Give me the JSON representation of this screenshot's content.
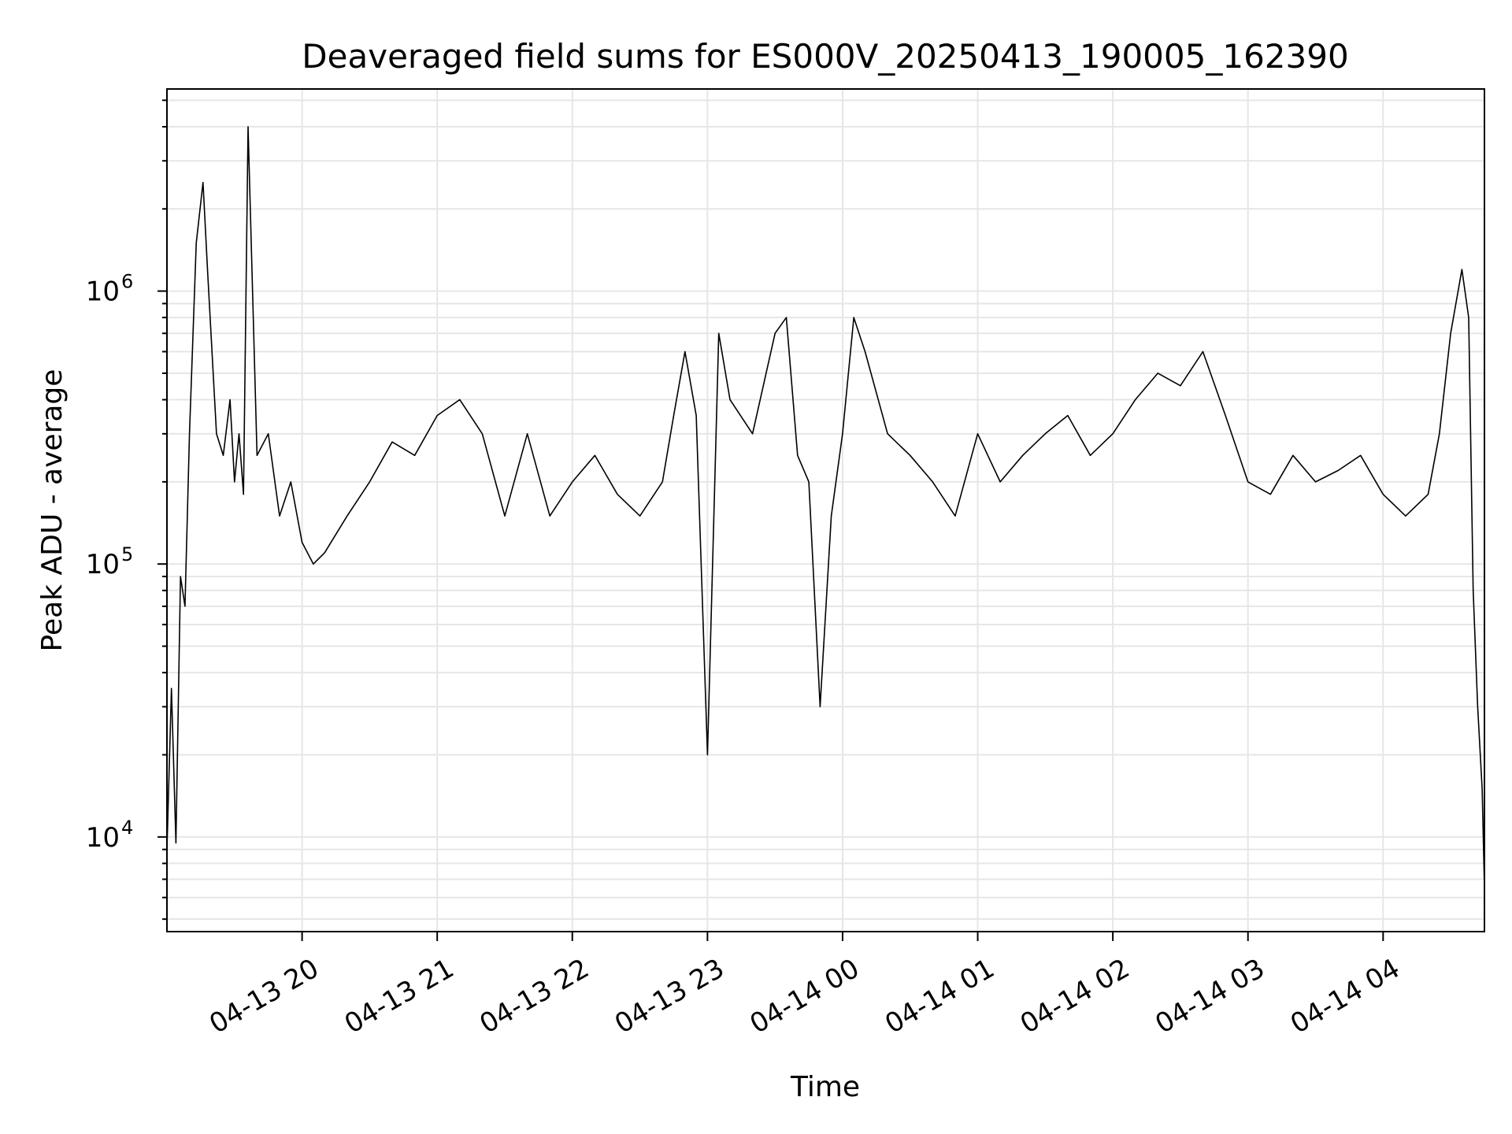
{
  "chart_data": {
    "type": "line",
    "title": "Deaveraged field sums for ES000V_20250413_190005_162390",
    "xlabel": "Time",
    "ylabel": "Peak ADU - average",
    "yscale": "log",
    "ylim": [
      4500,
      5500000
    ],
    "xlim": [
      "2025-04-13 19:00",
      "2025-04-14 04:45"
    ],
    "grid": true,
    "x_ticks": [
      "04-13 20",
      "04-13 21",
      "04-13 22",
      "04-13 23",
      "04-14 00",
      "04-14 01",
      "04-14 02",
      "04-14 03",
      "04-14 04"
    ],
    "y_ticks": [
      {
        "base": "10",
        "exp": "4",
        "value": 10000
      },
      {
        "base": "10",
        "exp": "5",
        "value": 100000
      },
      {
        "base": "10",
        "exp": "6",
        "value": 1000000
      }
    ],
    "line_color": "#000000",
    "series": [
      {
        "x": [
          "2025-04-13 19:00",
          "2025-04-13 19:02",
          "2025-04-13 19:04",
          "2025-04-13 19:06",
          "2025-04-13 19:08",
          "2025-04-13 19:10",
          "2025-04-13 19:13",
          "2025-04-13 19:16",
          "2025-04-13 19:18",
          "2025-04-13 19:20",
          "2025-04-13 19:22",
          "2025-04-13 19:25",
          "2025-04-13 19:28",
          "2025-04-13 19:30",
          "2025-04-13 19:32",
          "2025-04-13 19:34",
          "2025-04-13 19:36",
          "2025-04-13 19:40",
          "2025-04-13 19:45",
          "2025-04-13 19:50",
          "2025-04-13 19:55",
          "2025-04-13 20:00",
          "2025-04-13 20:05",
          "2025-04-13 20:10",
          "2025-04-13 20:20",
          "2025-04-13 20:30",
          "2025-04-13 20:40",
          "2025-04-13 20:50",
          "2025-04-13 21:00",
          "2025-04-13 21:10",
          "2025-04-13 21:20",
          "2025-04-13 21:30",
          "2025-04-13 21:40",
          "2025-04-13 21:50",
          "2025-04-13 22:00",
          "2025-04-13 22:10",
          "2025-04-13 22:20",
          "2025-04-13 22:30",
          "2025-04-13 22:40",
          "2025-04-13 22:45",
          "2025-04-13 22:50",
          "2025-04-13 22:55",
          "2025-04-13 23:00",
          "2025-04-13 23:05",
          "2025-04-13 23:10",
          "2025-04-13 23:20",
          "2025-04-13 23:30",
          "2025-04-13 23:35",
          "2025-04-13 23:40",
          "2025-04-13 23:45",
          "2025-04-13 23:50",
          "2025-04-13 23:55",
          "2025-04-14 00:00",
          "2025-04-14 00:05",
          "2025-04-14 00:10",
          "2025-04-14 00:20",
          "2025-04-14 00:30",
          "2025-04-14 00:40",
          "2025-04-14 00:50",
          "2025-04-14 01:00",
          "2025-04-14 01:10",
          "2025-04-14 01:20",
          "2025-04-14 01:30",
          "2025-04-14 01:40",
          "2025-04-14 01:50",
          "2025-04-14 02:00",
          "2025-04-14 02:10",
          "2025-04-14 02:20",
          "2025-04-14 02:30",
          "2025-04-14 02:40",
          "2025-04-14 02:50",
          "2025-04-14 03:00",
          "2025-04-14 03:10",
          "2025-04-14 03:20",
          "2025-04-14 03:30",
          "2025-04-14 03:40",
          "2025-04-14 03:50",
          "2025-04-14 04:00",
          "2025-04-14 04:10",
          "2025-04-14 04:20",
          "2025-04-14 04:25",
          "2025-04-14 04:30",
          "2025-04-14 04:35",
          "2025-04-14 04:38",
          "2025-04-14 04:40",
          "2025-04-14 04:42",
          "2025-04-14 04:44",
          "2025-04-14 04:45"
        ],
        "values": [
          9000,
          35000,
          9500,
          90000,
          70000,
          300000,
          1500000,
          2500000,
          1200000,
          600000,
          300000,
          250000,
          400000,
          200000,
          300000,
          180000,
          4000000,
          250000,
          300000,
          150000,
          200000,
          120000,
          100000,
          110000,
          150000,
          200000,
          280000,
          250000,
          350000,
          400000,
          300000,
          150000,
          300000,
          150000,
          200000,
          250000,
          180000,
          150000,
          200000,
          350000,
          600000,
          350000,
          20000,
          700000,
          400000,
          300000,
          700000,
          800000,
          250000,
          200000,
          30000,
          150000,
          300000,
          800000,
          600000,
          300000,
          250000,
          200000,
          150000,
          300000,
          200000,
          250000,
          300000,
          350000,
          250000,
          300000,
          400000,
          500000,
          450000,
          600000,
          350000,
          200000,
          180000,
          250000,
          200000,
          220000,
          250000,
          180000,
          150000,
          180000,
          300000,
          700000,
          1200000,
          800000,
          80000,
          30000,
          15000,
          6500
        ]
      }
    ]
  }
}
